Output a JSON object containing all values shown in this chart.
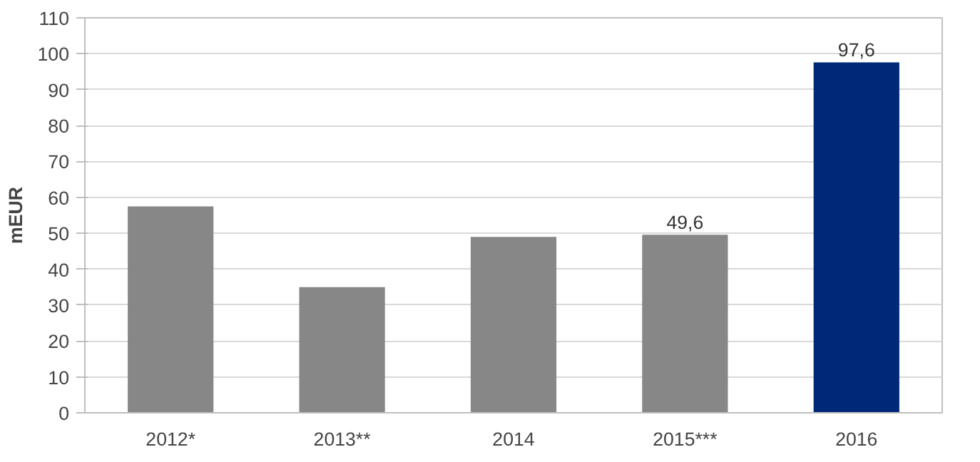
{
  "chart_data": {
    "type": "bar",
    "ylabel": "mEUR",
    "categories": [
      "2012*",
      "2013**",
      "2014",
      "2015***",
      "2016"
    ],
    "values": [
      57.5,
      35,
      49,
      49.6,
      97.6
    ],
    "colors": [
      "#878787",
      "#878787",
      "#878787",
      "#878787",
      "#002878"
    ],
    "value_labels": [
      null,
      null,
      null,
      "49,6",
      "97,6"
    ],
    "ylim": [
      0,
      110
    ],
    "yticks": [
      0,
      10,
      20,
      30,
      40,
      50,
      60,
      70,
      80,
      90,
      100,
      110
    ],
    "grid": "y"
  }
}
